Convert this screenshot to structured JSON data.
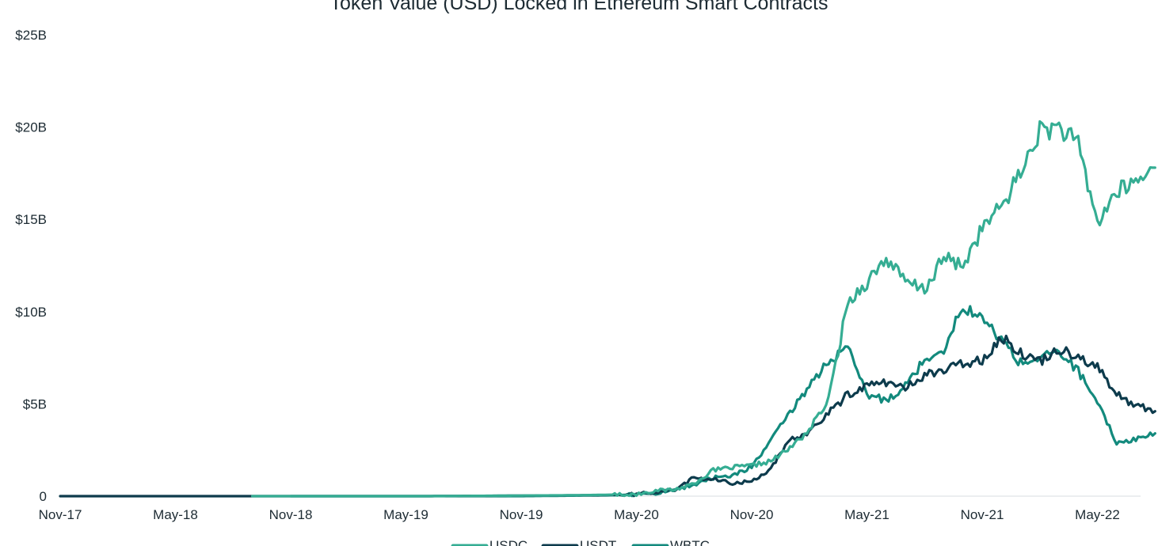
{
  "chart_data": {
    "type": "line",
    "title": "Token Value (USD) Locked in Ethereum Smart Contracts",
    "xlabel": "",
    "ylabel": "",
    "x_ticks": [
      "Nov-17",
      "May-18",
      "Nov-18",
      "May-19",
      "Nov-19",
      "May-20",
      "Nov-20",
      "May-21",
      "Nov-21",
      "May-22"
    ],
    "y_ticks": [
      "0",
      "$5B",
      "$10B",
      "$15B",
      "$20B",
      "$25B"
    ],
    "ylim": [
      0,
      25
    ],
    "y_unit": "USD billions",
    "xlim": [
      "2017-11",
      "2022-08"
    ],
    "grid": false,
    "legend_position": "bottom",
    "series": [
      {
        "name": "USDC",
        "color": "#35ad93",
        "points": [
          [
            "2018-09",
            0.0
          ],
          [
            "2019-06",
            0.0
          ],
          [
            "2020-02",
            0.05
          ],
          [
            "2020-05",
            0.1
          ],
          [
            "2020-06",
            0.3
          ],
          [
            "2020-07",
            0.35
          ],
          [
            "2020-08",
            0.7
          ],
          [
            "2020-09",
            1.4
          ],
          [
            "2020-10",
            1.55
          ],
          [
            "2020-11",
            1.65
          ],
          [
            "2020-12",
            1.9
          ],
          [
            "2021-01",
            2.6
          ],
          [
            "2021-02",
            3.6
          ],
          [
            "2021-03",
            5.2
          ],
          [
            "2021-04",
            10.5
          ],
          [
            "2021-05",
            11.6
          ],
          [
            "2021-06",
            12.9
          ],
          [
            "2021-07",
            11.6
          ],
          [
            "2021-08",
            11.2
          ],
          [
            "2021-09",
            12.9
          ],
          [
            "2021-10",
            12.5
          ],
          [
            "2021-11",
            14.5
          ],
          [
            "2021-12",
            15.7
          ],
          [
            "2022-01",
            17.5
          ],
          [
            "2022-02",
            19.8
          ],
          [
            "2022-03",
            20.0
          ],
          [
            "2022-04",
            19.0
          ],
          [
            "2022-05",
            14.8
          ],
          [
            "2022-06",
            16.5
          ],
          [
            "2022-07",
            17.0
          ],
          [
            "2022-08",
            17.8
          ]
        ]
      },
      {
        "name": "USDT",
        "color": "#0d3b4c",
        "points": [
          [
            "2017-11",
            0.0
          ],
          [
            "2019-06",
            0.0
          ],
          [
            "2020-03",
            0.05
          ],
          [
            "2020-05",
            0.1
          ],
          [
            "2020-07",
            0.35
          ],
          [
            "2020-08",
            1.0
          ],
          [
            "2020-09",
            0.9
          ],
          [
            "2020-10",
            0.7
          ],
          [
            "2020-11",
            0.8
          ],
          [
            "2020-12",
            1.5
          ],
          [
            "2021-01",
            3.0
          ],
          [
            "2021-02",
            3.5
          ],
          [
            "2021-03",
            4.5
          ],
          [
            "2021-04",
            5.5
          ],
          [
            "2021-05",
            6.0
          ],
          [
            "2021-06",
            6.2
          ],
          [
            "2021-07",
            5.8
          ],
          [
            "2021-08",
            6.6
          ],
          [
            "2021-09",
            6.8
          ],
          [
            "2021-10",
            7.2
          ],
          [
            "2021-11",
            7.4
          ],
          [
            "2021-12",
            8.6
          ],
          [
            "2022-01",
            7.8
          ],
          [
            "2022-02",
            7.3
          ],
          [
            "2022-03",
            8.0
          ],
          [
            "2022-04",
            7.6
          ],
          [
            "2022-05",
            7.0
          ],
          [
            "2022-06",
            5.5
          ],
          [
            "2022-07",
            4.9
          ],
          [
            "2022-08",
            4.6
          ]
        ]
      },
      {
        "name": "WBTC",
        "color": "#138a7d",
        "points": [
          [
            "2018-11",
            0.0
          ],
          [
            "2019-11",
            0.0
          ],
          [
            "2020-04",
            0.05
          ],
          [
            "2020-06",
            0.15
          ],
          [
            "2020-08",
            0.6
          ],
          [
            "2020-09",
            1.0
          ],
          [
            "2020-10",
            1.1
          ],
          [
            "2020-11",
            1.6
          ],
          [
            "2020-12",
            3.0
          ],
          [
            "2021-01",
            4.5
          ],
          [
            "2021-02",
            6.0
          ],
          [
            "2021-03",
            7.3
          ],
          [
            "2021-04",
            8.0
          ],
          [
            "2021-05",
            5.5
          ],
          [
            "2021-06",
            5.2
          ],
          [
            "2021-07",
            6.0
          ],
          [
            "2021-08",
            7.4
          ],
          [
            "2021-09",
            8.0
          ],
          [
            "2021-10",
            10.3
          ],
          [
            "2021-11",
            9.6
          ],
          [
            "2021-12",
            8.5
          ],
          [
            "2022-01",
            7.2
          ],
          [
            "2022-02",
            7.5
          ],
          [
            "2022-03",
            7.8
          ],
          [
            "2022-04",
            6.8
          ],
          [
            "2022-05",
            5.0
          ],
          [
            "2022-06",
            2.9
          ],
          [
            "2022-07",
            3.1
          ],
          [
            "2022-08",
            3.4
          ]
        ]
      }
    ]
  }
}
